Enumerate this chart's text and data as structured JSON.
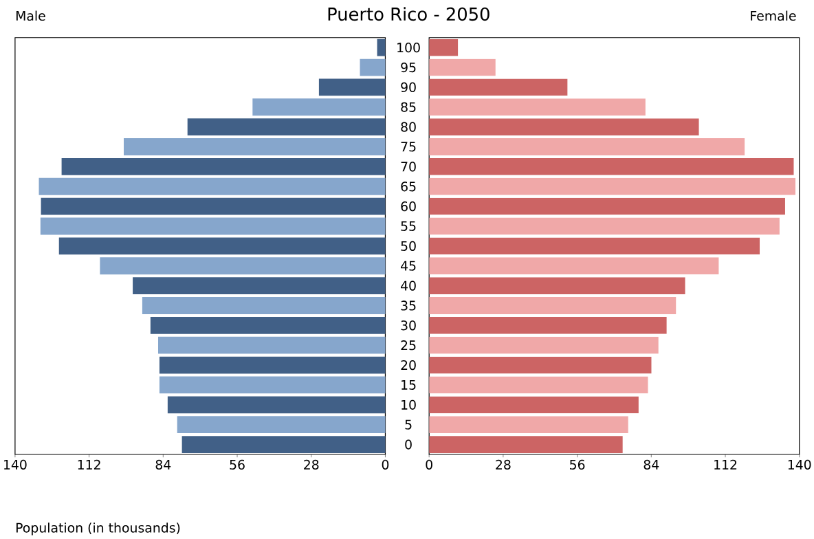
{
  "chart_data": [
    {
      "type": "bar",
      "orientation": "horizontal",
      "title": "Puerto Rico - 2050",
      "subtitle": "Male",
      "xlabel": "Population (in thousands)",
      "tick_labels": "x",
      "categories": [
        "100",
        "95",
        "90",
        "85",
        "80",
        "75",
        "70",
        "65",
        "60",
        "55",
        "50",
        "45",
        "40",
        "35",
        "30",
        "25",
        "20",
        "15",
        "10",
        "5",
        "0"
      ],
      "values": [
        3.1,
        9.6,
        25.1,
        50.2,
        74.8,
        98.9,
        122.4,
        131,
        130.2,
        130.4,
        123.4,
        107.9,
        95.5,
        91.9,
        88.8,
        85.9,
        85.4,
        85.4,
        82.3,
        78.7,
        76.9
      ],
      "colors": [
        "#416087",
        "#86a6cc",
        "#416087",
        "#86a6cc",
        "#416087",
        "#86a6cc",
        "#416087",
        "#86a6cc",
        "#416087",
        "#86a6cc",
        "#416087",
        "#86a6cc",
        "#416087",
        "#86a6cc",
        "#416087",
        "#86a6cc",
        "#416087",
        "#86a6cc",
        "#416087",
        "#86a6cc",
        "#416087"
      ],
      "xlim": [
        140,
        0
      ],
      "xticks": [
        140,
        112,
        84,
        56,
        28,
        0
      ]
    },
    {
      "type": "bar",
      "orientation": "horizontal",
      "subtitle": "Female",
      "categories": [
        "100",
        "95",
        "90",
        "85",
        "80",
        "75",
        "70",
        "65",
        "60",
        "55",
        "50",
        "45",
        "40",
        "35",
        "30",
        "25",
        "20",
        "15",
        "10",
        "5",
        "0"
      ],
      "values": [
        10.9,
        25.1,
        52.3,
        81.8,
        102,
        119.3,
        137.9,
        138.5,
        134.6,
        132.5,
        125,
        109.5,
        96.8,
        93.4,
        89.8,
        86.7,
        84.1,
        82.8,
        79.2,
        75.3,
        73.2
      ],
      "colors": [
        "#cc6464",
        "#f0a8a8",
        "#cc6464",
        "#f0a8a8",
        "#cc6464",
        "#f0a8a8",
        "#cc6464",
        "#f0a8a8",
        "#cc6464",
        "#f0a8a8",
        "#cc6464",
        "#f0a8a8",
        "#cc6464",
        "#f0a8a8",
        "#cc6464",
        "#f0a8a8",
        "#cc6464",
        "#f0a8a8",
        "#cc6464",
        "#f0a8a8",
        "#cc6464"
      ],
      "xlim": [
        0,
        140
      ],
      "xticks": [
        0,
        28,
        56,
        84,
        112,
        140
      ]
    }
  ]
}
